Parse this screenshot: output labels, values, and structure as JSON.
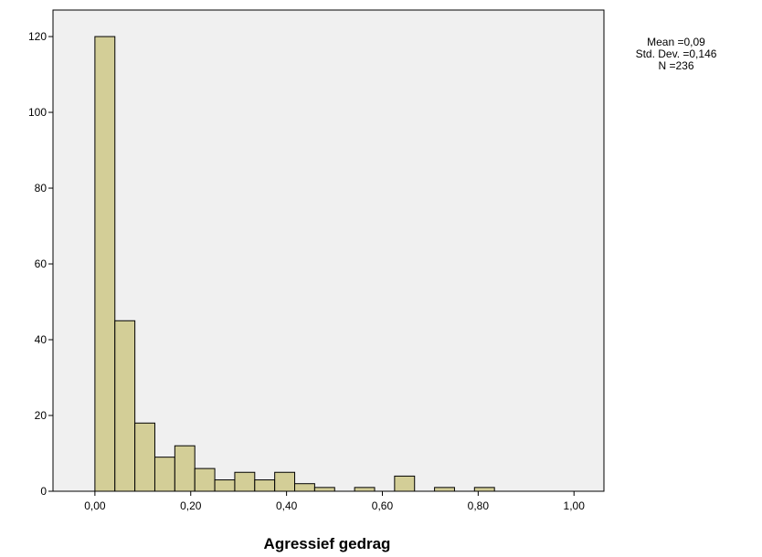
{
  "chart_data": {
    "type": "bar",
    "subtype": "histogram",
    "xlabel": "Agressief gedrag",
    "ylabel": "",
    "xlim": [
      -0.0875,
      1.0625
    ],
    "ylim": [
      0,
      127
    ],
    "x_ticks": [
      {
        "value": 0.0,
        "label": "0,00"
      },
      {
        "value": 0.2,
        "label": "0,20"
      },
      {
        "value": 0.4,
        "label": "0,40"
      },
      {
        "value": 0.6,
        "label": "0,60"
      },
      {
        "value": 0.8,
        "label": "0,80"
      },
      {
        "value": 1.0,
        "label": "1,00"
      }
    ],
    "y_ticks": [
      {
        "value": 0,
        "label": "0"
      },
      {
        "value": 20,
        "label": "20"
      },
      {
        "value": 40,
        "label": "40"
      },
      {
        "value": 60,
        "label": "60"
      },
      {
        "value": 80,
        "label": "80"
      },
      {
        "value": 100,
        "label": "100"
      },
      {
        "value": 120,
        "label": "120"
      }
    ],
    "bin_width": 0.0417,
    "bin_start": 0.0,
    "values": [
      120,
      45,
      18,
      9,
      12,
      6,
      3,
      5,
      3,
      5,
      2,
      1,
      0,
      1,
      0,
      4,
      0,
      1,
      0,
      1,
      0,
      0,
      0,
      0
    ],
    "grid": false,
    "colors": {
      "plot_background": "#f0f0f0",
      "bar_fill": "#d3ce97",
      "bar_stroke": "#000000",
      "axis": "#000000"
    }
  },
  "stats": {
    "mean": "Mean =0,09",
    "std": "Std. Dev. =0,146",
    "n": "N =236"
  }
}
